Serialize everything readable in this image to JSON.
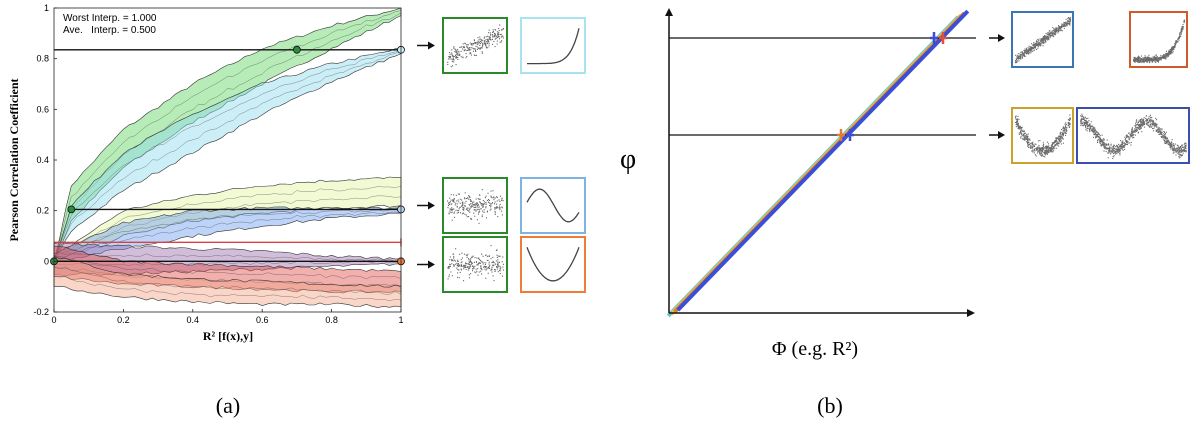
{
  "chart_data": [
    {
      "panel_label": "(a)",
      "type": "line",
      "xlabel": "R² [f(x),y]",
      "ylabel": "Pearson Correlation Coefficient",
      "xlim": [
        0,
        1
      ],
      "ylim": [
        -0.2,
        1
      ],
      "xticks": [
        "0",
        "0.2",
        "0.4",
        "0.6",
        "0.8",
        "1"
      ],
      "yticks": [
        "-0.2",
        "0",
        "0.2",
        "0.4",
        "0.6",
        "0.8",
        "1"
      ],
      "annotation": [
        "Worst Interp. = 1.000",
        "Ave.   Interp. = 0.500"
      ],
      "grid": false,
      "series": [
        {
          "color": "#5fd35f",
          "upper": [
            [
              0,
              0
            ],
            [
              0.05,
              0.3
            ],
            [
              0.2,
              0.52
            ],
            [
              0.4,
              0.7
            ],
            [
              0.6,
              0.84
            ],
            [
              0.8,
              0.93
            ],
            [
              1,
              1.0
            ]
          ],
          "lower": [
            [
              0,
              0
            ],
            [
              0.05,
              0.16
            ],
            [
              0.2,
              0.37
            ],
            [
              0.4,
              0.55
            ],
            [
              0.6,
              0.7
            ],
            [
              0.8,
              0.84
            ],
            [
              1,
              0.97
            ]
          ]
        },
        {
          "color": "#8fdcee",
          "upper": [
            [
              0,
              0
            ],
            [
              0.05,
              0.22
            ],
            [
              0.2,
              0.43
            ],
            [
              0.4,
              0.58
            ],
            [
              0.6,
              0.7
            ],
            [
              0.8,
              0.78
            ],
            [
              1,
              0.84
            ]
          ],
          "lower": [
            [
              0,
              0
            ],
            [
              0.05,
              0.12
            ],
            [
              0.2,
              0.28
            ],
            [
              0.4,
              0.43
            ],
            [
              0.6,
              0.58
            ],
            [
              0.8,
              0.71
            ],
            [
              1,
              0.82
            ]
          ]
        },
        {
          "color": "#e3f5a0",
          "upper": [
            [
              0,
              0.02
            ],
            [
              0.2,
              0.2
            ],
            [
              0.4,
              0.26
            ],
            [
              0.6,
              0.3
            ],
            [
              0.8,
              0.32
            ],
            [
              1,
              0.33
            ]
          ],
          "lower": [
            [
              0,
              0
            ],
            [
              0.2,
              0.1
            ],
            [
              0.4,
              0.16
            ],
            [
              0.6,
              0.19
            ],
            [
              0.8,
              0.21
            ],
            [
              1,
              0.22
            ]
          ]
        },
        {
          "color": "#6f9df0",
          "upper": [
            [
              0,
              0.03
            ],
            [
              0.2,
              0.15
            ],
            [
              0.4,
              0.2
            ],
            [
              0.6,
              0.21
            ],
            [
              0.8,
              0.21
            ],
            [
              1,
              0.21
            ]
          ],
          "lower": [
            [
              0,
              0
            ],
            [
              0.2,
              0.05
            ],
            [
              0.4,
              0.1
            ],
            [
              0.6,
              0.14
            ],
            [
              0.8,
              0.17
            ],
            [
              1,
              0.19
            ]
          ]
        },
        {
          "color": "#9b6fb0",
          "upper": [
            [
              0,
              0.07
            ],
            [
              0.2,
              0.06
            ],
            [
              0.4,
              0.05
            ],
            [
              0.6,
              0.04
            ],
            [
              0.8,
              0.02
            ],
            [
              1,
              0.01
            ]
          ],
          "lower": [
            [
              0,
              -0.05
            ],
            [
              0.2,
              -0.05
            ],
            [
              0.4,
              -0.04
            ],
            [
              0.6,
              -0.03
            ],
            [
              0.8,
              -0.02
            ],
            [
              1,
              -0.01
            ]
          ]
        },
        {
          "color": "#e0504a",
          "upper": [
            [
              0,
              0.06
            ],
            [
              0.2,
              0.0
            ],
            [
              0.4,
              -0.01
            ],
            [
              0.6,
              -0.02
            ],
            [
              0.8,
              -0.03
            ],
            [
              1,
              -0.04
            ]
          ],
          "lower": [
            [
              0,
              -0.06
            ],
            [
              0.2,
              -0.09
            ],
            [
              0.4,
              -0.1
            ],
            [
              0.6,
              -0.11
            ],
            [
              0.8,
              -0.12
            ],
            [
              1,
              -0.12
            ]
          ]
        },
        {
          "color": "#f5a487",
          "upper": [
            [
              0,
              0.02
            ],
            [
              0.2,
              -0.05
            ],
            [
              0.4,
              -0.07
            ],
            [
              0.6,
              -0.08
            ],
            [
              0.8,
              -0.09
            ],
            [
              1,
              -0.1
            ]
          ],
          "lower": [
            [
              0,
              -0.1
            ],
            [
              0.2,
              -0.14
            ],
            [
              0.4,
              -0.16
            ],
            [
              0.6,
              -0.17
            ],
            [
              0.8,
              -0.17
            ],
            [
              1,
              -0.18
            ]
          ]
        }
      ],
      "reference_lines": [
        {
          "y": 0.835,
          "x_start": 0,
          "x_end": 1,
          "color": "#111111",
          "marker_dark": [
            0.7,
            0.835
          ],
          "marker_light": [
            1.0,
            0.835
          ],
          "marker_dark_color": "#2e8b3e",
          "marker_light_color": "#cfeef7"
        },
        {
          "y": 0.205,
          "x_start": 0.05,
          "x_end": 1,
          "color": "#111111",
          "marker_dark": [
            0.05,
            0.205
          ],
          "marker_light": [
            1.0,
            0.205
          ],
          "marker_dark_color": "#2e8b3e",
          "marker_light_color": "#b8d4f5"
        },
        {
          "y": 0.0,
          "x_start": 0,
          "x_end": 1,
          "color": "#111111",
          "marker_dark": [
            0.0,
            0.0
          ],
          "marker_light": [
            1.0,
            0.0
          ],
          "marker_dark_color": "#2e8b3e",
          "marker_light_color": "#f07c3a"
        },
        {
          "y": 0.075,
          "x_start": 0,
          "x_end": 1,
          "color": "#d94040",
          "marker_dark": null,
          "marker_light": null
        }
      ],
      "insets": [
        {
          "row": 0,
          "kind": "scatter-linear",
          "border": "#2a8a2a"
        },
        {
          "row": 0,
          "kind": "curve-exponential",
          "border": "#a8e4f0"
        },
        {
          "row": 1,
          "kind": "scatter-flat",
          "border": "#2a8a2a"
        },
        {
          "row": 1,
          "kind": "curve-cubic",
          "border": "#7fb2e5"
        },
        {
          "row": 2,
          "kind": "scatter-flat",
          "border": "#2a8a2a"
        },
        {
          "row": 2,
          "kind": "curve-parabola",
          "border": "#f07c3a"
        }
      ]
    },
    {
      "panel_label": "(b)",
      "type": "line",
      "xlabel": "Φ (e.g. R²)",
      "ylabel": "φ",
      "series": [
        {
          "color": "#5fc8d6"
        },
        {
          "color": "#f0c040"
        },
        {
          "color": "#e07b3a"
        },
        {
          "color": "#3a4fd6"
        }
      ],
      "reference_lines": [
        {
          "y_frac": 0.92,
          "x_end_frac": 0.92,
          "cross_colors": [
            "#3a4fd6",
            "#e0503a"
          ]
        },
        {
          "y_frac": 0.6,
          "x_end_frac": 0.58,
          "cross_colors": [
            "#e07b3a",
            "#3a4fd6"
          ]
        }
      ],
      "insets": [
        {
          "row": 0,
          "kind": "scatter-linear-noisy",
          "border": "#3a77b0"
        },
        {
          "row": 0,
          "kind": "scatter-exponential",
          "border": "#d05a2a"
        },
        {
          "row": 1,
          "kind": "scatter-parabola",
          "border": "#c9a230"
        },
        {
          "row": 1,
          "kind": "scatter-sine",
          "border": "#3a4fb0"
        }
      ]
    }
  ]
}
